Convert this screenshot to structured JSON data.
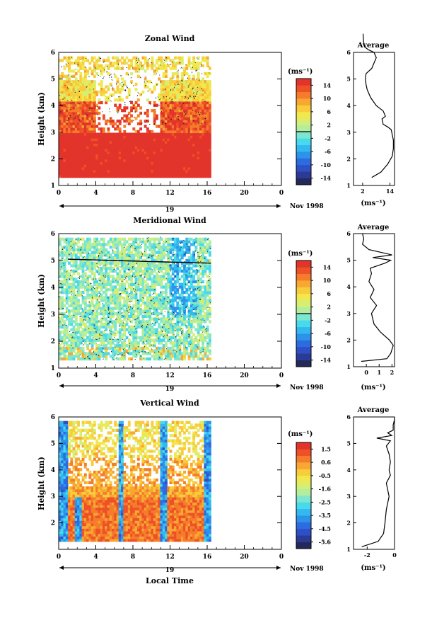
{
  "date_label": "Nov 1998",
  "bottom_xlabel": "Local Time",
  "colorbar_unit": "(ms⁻¹)",
  "chart_data": [
    {
      "type": "heatmap",
      "title": "Zonal Wind",
      "xlabel": "",
      "ylabel": "Height (km)",
      "xlim": [
        0,
        24
      ],
      "ylim": [
        1,
        6
      ],
      "xticks": [
        "0",
        "4",
        "8",
        "12",
        "16",
        "20",
        "0"
      ],
      "yticks": [
        "1",
        "2",
        "3",
        "4",
        "5",
        "6"
      ],
      "day_label": "19",
      "colorbar": {
        "min": -15,
        "max": 15,
        "labels": [
          "14",
          "10",
          "6",
          "2",
          "-2",
          "-6",
          "-10",
          "-14"
        ]
      },
      "profile": {
        "title": "Average",
        "xlabel": "(ms⁻¹)",
        "xlim": [
          -2,
          16
        ],
        "xticks": [
          "2",
          "14"
        ],
        "height": [
          1.3,
          1.5,
          1.8,
          2.1,
          2.4,
          2.7,
          2.9,
          3.0,
          3.1,
          3.2,
          3.3,
          3.5,
          3.6,
          3.8,
          4.0,
          4.3,
          4.6,
          4.8,
          5.0,
          5.2,
          5.4,
          5.6,
          5.8,
          6.0,
          6.1,
          6.2,
          6.4,
          6.7
        ],
        "value": [
          6,
          10,
          13,
          15,
          15.5,
          15.5,
          15,
          14.8,
          14.5,
          13,
          11,
          10.5,
          12,
          11,
          8,
          5.5,
          4,
          3.5,
          3.2,
          3.5,
          6,
          7,
          8,
          7,
          4.5,
          3,
          2.4,
          2.2
        ]
      }
    },
    {
      "type": "heatmap",
      "title": "Meridional Wind",
      "xlabel": "",
      "ylabel": "Height (km)",
      "xlim": [
        0,
        24
      ],
      "ylim": [
        1,
        6
      ],
      "xticks": [
        "0",
        "4",
        "8",
        "12",
        "16",
        "20",
        "0"
      ],
      "yticks": [
        "1",
        "2",
        "3",
        "4",
        "5",
        "6"
      ],
      "day_label": "19",
      "colorbar": {
        "min": -15,
        "max": 15,
        "labels": [
          "14",
          "10",
          "6",
          "2",
          "-2",
          "-6",
          "-10",
          "-14"
        ]
      },
      "profile": {
        "title": "Average",
        "xlabel": "(ms⁻¹)",
        "xlim": [
          -1,
          2.2
        ],
        "xticks": [
          "0",
          "1",
          "2"
        ],
        "height": [
          1.2,
          1.3,
          1.5,
          1.8,
          2.0,
          2.3,
          2.6,
          3.0,
          3.3,
          3.6,
          3.9,
          4.2,
          4.5,
          4.7,
          4.9,
          5.0,
          5.1,
          5.2,
          5.4,
          5.6,
          5.8,
          6.0
        ],
        "value": [
          -0.4,
          1.6,
          1.9,
          2.1,
          1.8,
          1.1,
          0.6,
          0.4,
          0.8,
          0.3,
          0.6,
          0.2,
          0.4,
          0.3,
          1.5,
          1.9,
          0.5,
          2.0,
          0.2,
          -0.3,
          -0.2,
          -0.3
        ]
      }
    },
    {
      "type": "heatmap",
      "title": "Vertical Wind",
      "xlabel": "",
      "ylabel": "Height (km)",
      "xlim": [
        0,
        24
      ],
      "ylim": [
        1,
        6
      ],
      "xticks": [
        "0",
        "4",
        "8",
        "12",
        "16",
        "20",
        "0"
      ],
      "yticks": [
        "2",
        "3",
        "4",
        "5",
        "6"
      ],
      "day_label": "19",
      "colorbar": {
        "min": -5.9,
        "max": 2.1,
        "labels": [
          "1.5",
          "0.6",
          "-0.5",
          "-1.6",
          "-2.5",
          "-3.5",
          "-4.5",
          "-5.6"
        ]
      },
      "profile": {
        "title": "Average",
        "xlabel": "(ms⁻¹)",
        "xlim": [
          -3,
          0
        ],
        "xticks": [
          "-2",
          "0"
        ],
        "height": [
          1.1,
          1.3,
          1.6,
          2.0,
          2.5,
          3.0,
          3.5,
          3.8,
          4.0,
          4.3,
          4.6,
          4.9,
          5.1,
          5.2,
          5.3,
          5.4,
          5.5,
          5.7,
          5.9,
          6.0
        ],
        "value": [
          -2.4,
          -1.2,
          -0.8,
          -0.7,
          -0.6,
          -0.4,
          -0.6,
          -0.3,
          -0.4,
          -0.3,
          -0.4,
          -0.6,
          -0.3,
          -1.3,
          -0.2,
          -0.5,
          -0.1,
          -0.1,
          0,
          0
        ]
      }
    }
  ]
}
